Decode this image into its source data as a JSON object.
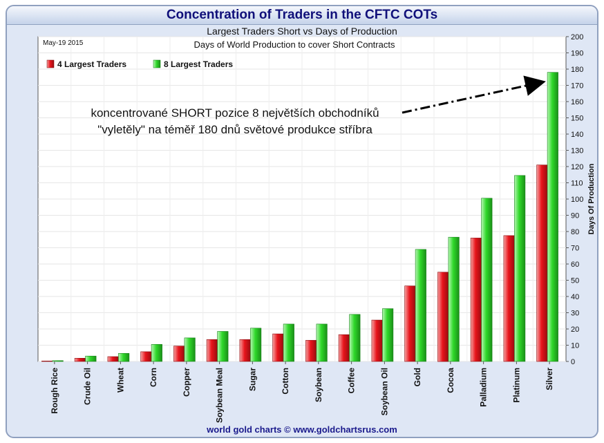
{
  "chart_data": {
    "type": "bar",
    "title": "Concentration of Traders in the CFTC COTs",
    "subtitle": "Largest Traders Short vs Days of Production",
    "inner_title": "Days of World Production to cover Short Contracts",
    "date_label": "May-19 2015",
    "ylabel": "Days Of Production",
    "ylim": [
      0,
      200
    ],
    "yticks": [
      0,
      10,
      20,
      30,
      40,
      50,
      60,
      70,
      80,
      90,
      100,
      110,
      120,
      130,
      140,
      150,
      160,
      170,
      180,
      190,
      200
    ],
    "grid": true,
    "legend_position": "top-left",
    "categories": [
      "Rough Rice",
      "Crude Oil",
      "Wheat",
      "Corn",
      "Copper",
      "Soybean Meal",
      "Sugar",
      "Cotton",
      "Soybean",
      "Coffee",
      "Soybean Oil",
      "Gold",
      "Cocoa",
      "Palladium",
      "Platinum",
      "Silver"
    ],
    "series": [
      {
        "name": "4 Largest Traders",
        "color": "#e8141b",
        "values": [
          0.3,
          2,
          3,
          6,
          9.5,
          13.5,
          13.5,
          17,
          13,
          16.5,
          25.5,
          46.5,
          55,
          76,
          77.5,
          121
        ]
      },
      {
        "name": "8 Largest Traders",
        "color": "#2fd82a",
        "values": [
          0.5,
          3.3,
          5,
          10.5,
          14.5,
          18.5,
          20.5,
          23,
          23,
          29,
          32.5,
          69,
          76.5,
          100.5,
          114.5,
          178
        ]
      }
    ],
    "annotation": {
      "line1": "koncentrované SHORT pozice 8 největších obchodníků",
      "line2": "\"vyletěly\" na téměř 180 dnů světové produkce stříbra"
    }
  },
  "footer": "world gold charts © www.goldchartsrus.com"
}
